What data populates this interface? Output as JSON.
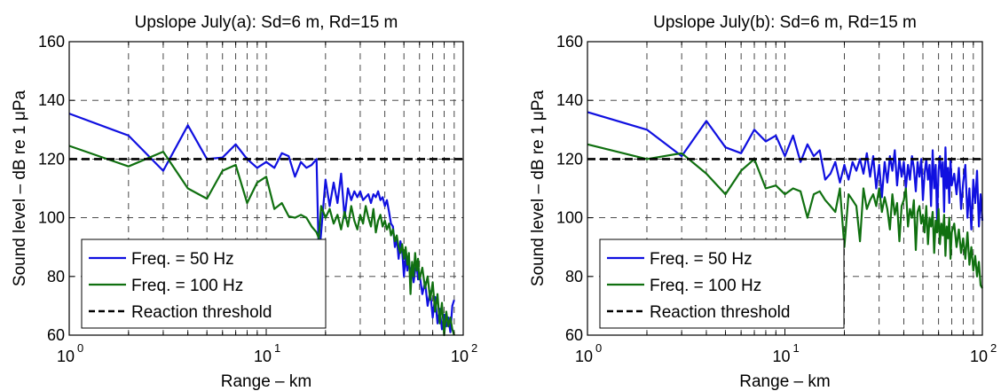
{
  "chart_data": [
    {
      "type": "line",
      "title": "Upslope July(a):   Sd=6 m, Rd=15 m",
      "xlabel": "Range – km",
      "ylabel": "Sound level – dB re 1  μPa",
      "xscale": "log",
      "xlim": [
        1,
        100
      ],
      "ylim": [
        60,
        160
      ],
      "x_ticks": [
        1,
        10,
        100
      ],
      "x_tick_labels": [
        {
          "base": "10",
          "exp": "0"
        },
        {
          "base": "10",
          "exp": "1"
        },
        {
          "base": "10",
          "exp": "2"
        }
      ],
      "y_ticks": [
        "60",
        "80",
        "100",
        "120",
        "140",
        "160"
      ],
      "grid": true,
      "legend_position": "bottom-left",
      "series": [
        {
          "name": "Freq. = 50 Hz",
          "color": "#1010e0",
          "style": "solid",
          "x": [
            1,
            2,
            3,
            4,
            5,
            6,
            7,
            8,
            9,
            10,
            11,
            12,
            13,
            14,
            15,
            16,
            17,
            18,
            18.5,
            19,
            20,
            21,
            22,
            23,
            24,
            25,
            26,
            27,
            28,
            29,
            30,
            31,
            32,
            33,
            34,
            35,
            36,
            37,
            38,
            39,
            40,
            41,
            42,
            43,
            44,
            45,
            46,
            47,
            48,
            49,
            50,
            51,
            52,
            53,
            54,
            55,
            56,
            57,
            58,
            59,
            60,
            62,
            64,
            66,
            68,
            70,
            72,
            74,
            76,
            78,
            80,
            82,
            84,
            86,
            88,
            90
          ],
          "y": [
            135.5,
            128,
            116,
            131.5,
            120,
            120.5,
            125,
            120,
            117,
            119,
            117,
            122,
            121,
            114,
            119,
            117,
            118,
            120,
            86,
            95,
            113,
            104,
            112,
            105,
            115,
            100,
            110,
            106,
            109,
            107,
            109,
            106,
            107,
            108,
            105,
            108,
            107,
            109,
            106,
            107,
            104,
            106,
            102,
            98,
            97,
            90,
            93,
            86,
            92,
            89,
            80,
            87,
            82,
            86,
            80,
            84,
            78,
            82,
            84,
            79,
            81,
            74,
            78,
            70,
            75,
            66,
            73,
            64,
            69,
            62,
            67,
            63,
            66,
            61,
            70,
            72
          ]
        },
        {
          "name": "Freq. = 100 Hz",
          "color": "#107010",
          "style": "solid",
          "x": [
            1,
            2,
            3,
            4,
            5,
            6,
            7,
            8,
            9,
            10,
            11,
            12,
            13,
            14,
            15,
            16,
            17,
            18,
            18.5,
            19,
            20,
            21,
            22,
            23,
            24,
            25,
            26,
            27,
            28,
            29,
            30,
            31,
            32,
            33,
            34,
            35,
            36,
            37,
            38,
            39,
            40,
            41,
            42,
            43,
            44,
            45,
            46,
            47,
            48,
            49,
            50,
            51,
            52,
            53,
            54,
            55,
            56,
            57,
            58,
            59,
            60,
            62,
            64,
            66,
            68,
            70,
            72,
            74,
            76,
            78,
            80,
            82,
            84,
            86,
            88,
            90
          ],
          "y": [
            124.5,
            117.5,
            122.5,
            110,
            106.5,
            116,
            118,
            105,
            112,
            114,
            103,
            105,
            100.5,
            100,
            101,
            100,
            97,
            95,
            93,
            104,
            100,
            103,
            98,
            101,
            96,
            102,
            97,
            104,
            99,
            96,
            101,
            98,
            104,
            100,
            97,
            103,
            95,
            99,
            101,
            97,
            99,
            96,
            98,
            94,
            96,
            92,
            94,
            90,
            88,
            91,
            86,
            90,
            84,
            88,
            74,
            85,
            80,
            88,
            82,
            86,
            79,
            83,
            76,
            80,
            72,
            78,
            68,
            74,
            64,
            71,
            60,
            68,
            63,
            66,
            62,
            60
          ]
        },
        {
          "name": "Reaction threshold",
          "color": "#000000",
          "style": "dashed",
          "x": [
            1,
            100
          ],
          "y": [
            120,
            120
          ]
        }
      ]
    },
    {
      "type": "line",
      "title": "Upslope July(b):   Sd=6 m, Rd=15 m",
      "xlabel": "Range – km",
      "ylabel": "Sound level – dB re 1  μPa",
      "xscale": "log",
      "xlim": [
        1,
        100
      ],
      "ylim": [
        60,
        160
      ],
      "x_ticks": [
        1,
        10,
        100
      ],
      "x_tick_labels": [
        {
          "base": "10",
          "exp": "0"
        },
        {
          "base": "10",
          "exp": "1"
        },
        {
          "base": "10",
          "exp": "2"
        }
      ],
      "y_ticks": [
        "60",
        "80",
        "100",
        "120",
        "140",
        "160"
      ],
      "grid": true,
      "legend_position": "bottom-left",
      "series": [
        {
          "name": "Freq. = 50 Hz",
          "color": "#1010e0",
          "style": "solid",
          "x": [
            1,
            2,
            3,
            4,
            5,
            6,
            7,
            8,
            9,
            10,
            11,
            12,
            13,
            14,
            15,
            16,
            17,
            18,
            19,
            20,
            21,
            22,
            23,
            24,
            25,
            26,
            27,
            28,
            29,
            30,
            31,
            32,
            33,
            34,
            35,
            36,
            37,
            38,
            39,
            40,
            41,
            42,
            43,
            44,
            45,
            46,
            47,
            48,
            49,
            50,
            51,
            52,
            53,
            54,
            55,
            56,
            57,
            58,
            59,
            60,
            61,
            62,
            63,
            64,
            65,
            66,
            67,
            68,
            69,
            70,
            72,
            74,
            76,
            78,
            80,
            82,
            84,
            86,
            88,
            90,
            92,
            94,
            96,
            98,
            100
          ],
          "y": [
            136,
            130,
            121,
            133,
            124,
            122,
            130,
            126,
            128,
            121,
            128,
            119,
            125,
            121,
            123,
            113,
            115,
            119,
            112,
            118,
            113,
            119,
            116,
            120,
            115,
            122,
            114,
            121,
            110,
            118,
            107,
            119,
            112,
            121,
            116,
            123,
            111,
            120,
            114,
            119,
            110,
            118,
            113,
            121,
            117,
            109,
            119,
            114,
            120,
            106,
            115,
            120,
            113,
            118,
            104,
            123,
            110,
            118,
            99,
            116,
            121,
            114,
            119,
            102,
            124,
            110,
            117,
            105,
            120,
            111,
            115,
            108,
            117,
            103,
            112,
            118,
            100,
            110,
            96,
            113,
            105,
            116,
            97,
            108,
            99
          ]
        },
        {
          "name": "Freq. = 100 Hz",
          "color": "#107010",
          "style": "solid",
          "x": [
            1,
            2,
            3,
            4,
            5,
            6,
            7,
            8,
            9,
            10,
            11,
            12,
            13,
            14,
            15,
            16,
            17,
            18,
            19,
            20,
            21,
            22,
            23,
            24,
            25,
            26,
            27,
            28,
            29,
            30,
            31,
            32,
            33,
            34,
            35,
            36,
            37,
            38,
            39,
            40,
            41,
            42,
            43,
            44,
            45,
            46,
            47,
            48,
            49,
            50,
            51,
            52,
            53,
            54,
            55,
            56,
            57,
            58,
            59,
            60,
            61,
            62,
            63,
            64,
            65,
            66,
            67,
            68,
            69,
            70,
            72,
            74,
            76,
            78,
            80,
            82,
            84,
            86,
            88,
            90,
            92,
            94,
            96,
            98,
            100
          ],
          "y": [
            125,
            120,
            122,
            115,
            108,
            116,
            120,
            110,
            111,
            108,
            110,
            109,
            100,
            108,
            109,
            106,
            104,
            102,
            110,
            90,
            108,
            106,
            104,
            92,
            110,
            103,
            106,
            108,
            104,
            110,
            102,
            107,
            103,
            96,
            108,
            101,
            105,
            92,
            104,
            106,
            110,
            97,
            103,
            100,
            106,
            89,
            102,
            104,
            98,
            101,
            95,
            104,
            91,
            100,
            97,
            102,
            88,
            99,
            95,
            103,
            91,
            98,
            94,
            101,
            87,
            97,
            93,
            100,
            86,
            95,
            98,
            90,
            96,
            88,
            93,
            86,
            95,
            84,
            90,
            82,
            87,
            80,
            85,
            77,
            76
          ]
        },
        {
          "name": "Reaction threshold",
          "color": "#000000",
          "style": "dashed",
          "x": [
            1,
            100
          ],
          "y": [
            120,
            120
          ]
        }
      ]
    }
  ]
}
